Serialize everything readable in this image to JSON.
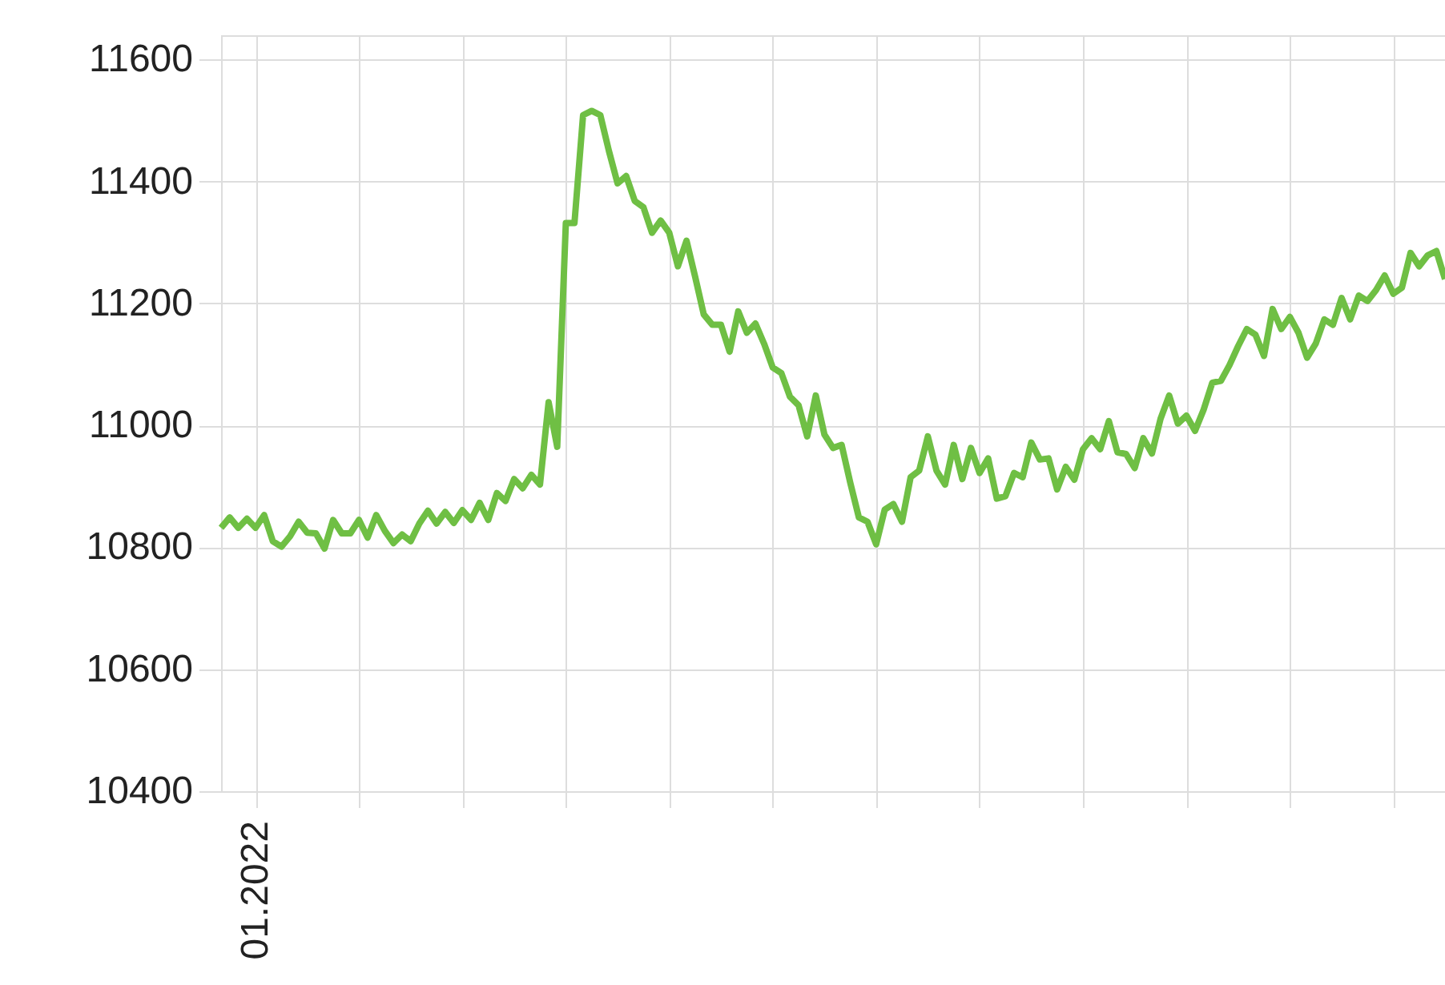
{
  "chart_data": {
    "type": "line",
    "grid": true,
    "marker": "none",
    "line_style": "solid",
    "categories": [
      null,
      null,
      null,
      null,
      "01.2022",
      null,
      null,
      null,
      null,
      null,
      null,
      null,
      null,
      null,
      null,
      null,
      null,
      null,
      null,
      null,
      null,
      null,
      null,
      null,
      null,
      null,
      null,
      null,
      null,
      null,
      null,
      null,
      null,
      null,
      null,
      null,
      null,
      null,
      null,
      null,
      null,
      null,
      null,
      null,
      null,
      null,
      null,
      null,
      null,
      null,
      null,
      null,
      null,
      null,
      null,
      null,
      null,
      null,
      null,
      null,
      null,
      null,
      null,
      null,
      null,
      null,
      null,
      null,
      null,
      null,
      null,
      null,
      null,
      null,
      null,
      null,
      null,
      null,
      null,
      null,
      null,
      null,
      null,
      null,
      null,
      null,
      null,
      null,
      null,
      null,
      null,
      null,
      null,
      null,
      null,
      null,
      null,
      null,
      null,
      null,
      null,
      null,
      null,
      null,
      null,
      null,
      null,
      null,
      null,
      null,
      null,
      null,
      null,
      null,
      null,
      null,
      null,
      null,
      null,
      null,
      null,
      null,
      null,
      null,
      null,
      null,
      null,
      null,
      null,
      null,
      null,
      null,
      null,
      null,
      null,
      null,
      null,
      null,
      null,
      null,
      null,
      null,
      null
    ],
    "series": [
      {
        "color": "#6fbf44",
        "values": [
          10832,
          10849,
          10832,
          10847,
          10832,
          10853,
          10810,
          10801,
          10818,
          10842,
          10824,
          10823,
          10798,
          10845,
          10823,
          10823,
          10845,
          10816,
          10853,
          10827,
          10807,
          10821,
          10810,
          10839,
          10860,
          10839,
          10858,
          10840,
          10861,
          10845,
          10873,
          10845,
          10889,
          10876,
          10912,
          10897,
          10919,
          10903,
          11038,
          10965,
          11332,
          11332,
          11509,
          11516,
          11509,
          11450,
          11397,
          11409,
          11368,
          11358,
          11316,
          11336,
          11316,
          11261,
          11303,
          11244,
          11182,
          11165,
          11165,
          11121,
          11187,
          11152,
          11167,
          11134,
          11095,
          11086,
          11047,
          11033,
          10982,
          11049,
          10985,
          10963,
          10968,
          10906,
          10849,
          10842,
          10805,
          10862,
          10871,
          10842,
          10915,
          10926,
          10982,
          10926,
          10903,
          10968,
          10912,
          10963,
          10922,
          10946,
          10880,
          10884,
          10922,
          10915,
          10972,
          10944,
          10946,
          10895,
          10932,
          10911,
          10961,
          10979,
          10961,
          11007,
          10956,
          10953,
          10930,
          10979,
          10954,
          11011,
          11049,
          11003,
          11016,
          10991,
          11026,
          11070,
          11073,
          11099,
          11130,
          11158,
          11149,
          11114,
          11191,
          11158,
          11178,
          11152,
          11111,
          11134,
          11174,
          11165,
          11209,
          11174,
          11213,
          11204,
          11222,
          11246,
          11216,
          11226,
          11283,
          11261,
          11279,
          11286,
          11240
        ]
      }
    ],
    "ylim": [
      10400,
      11640
    ],
    "yticks": [
      10400,
      10600,
      10800,
      11000,
      11200,
      11400,
      11600
    ]
  }
}
